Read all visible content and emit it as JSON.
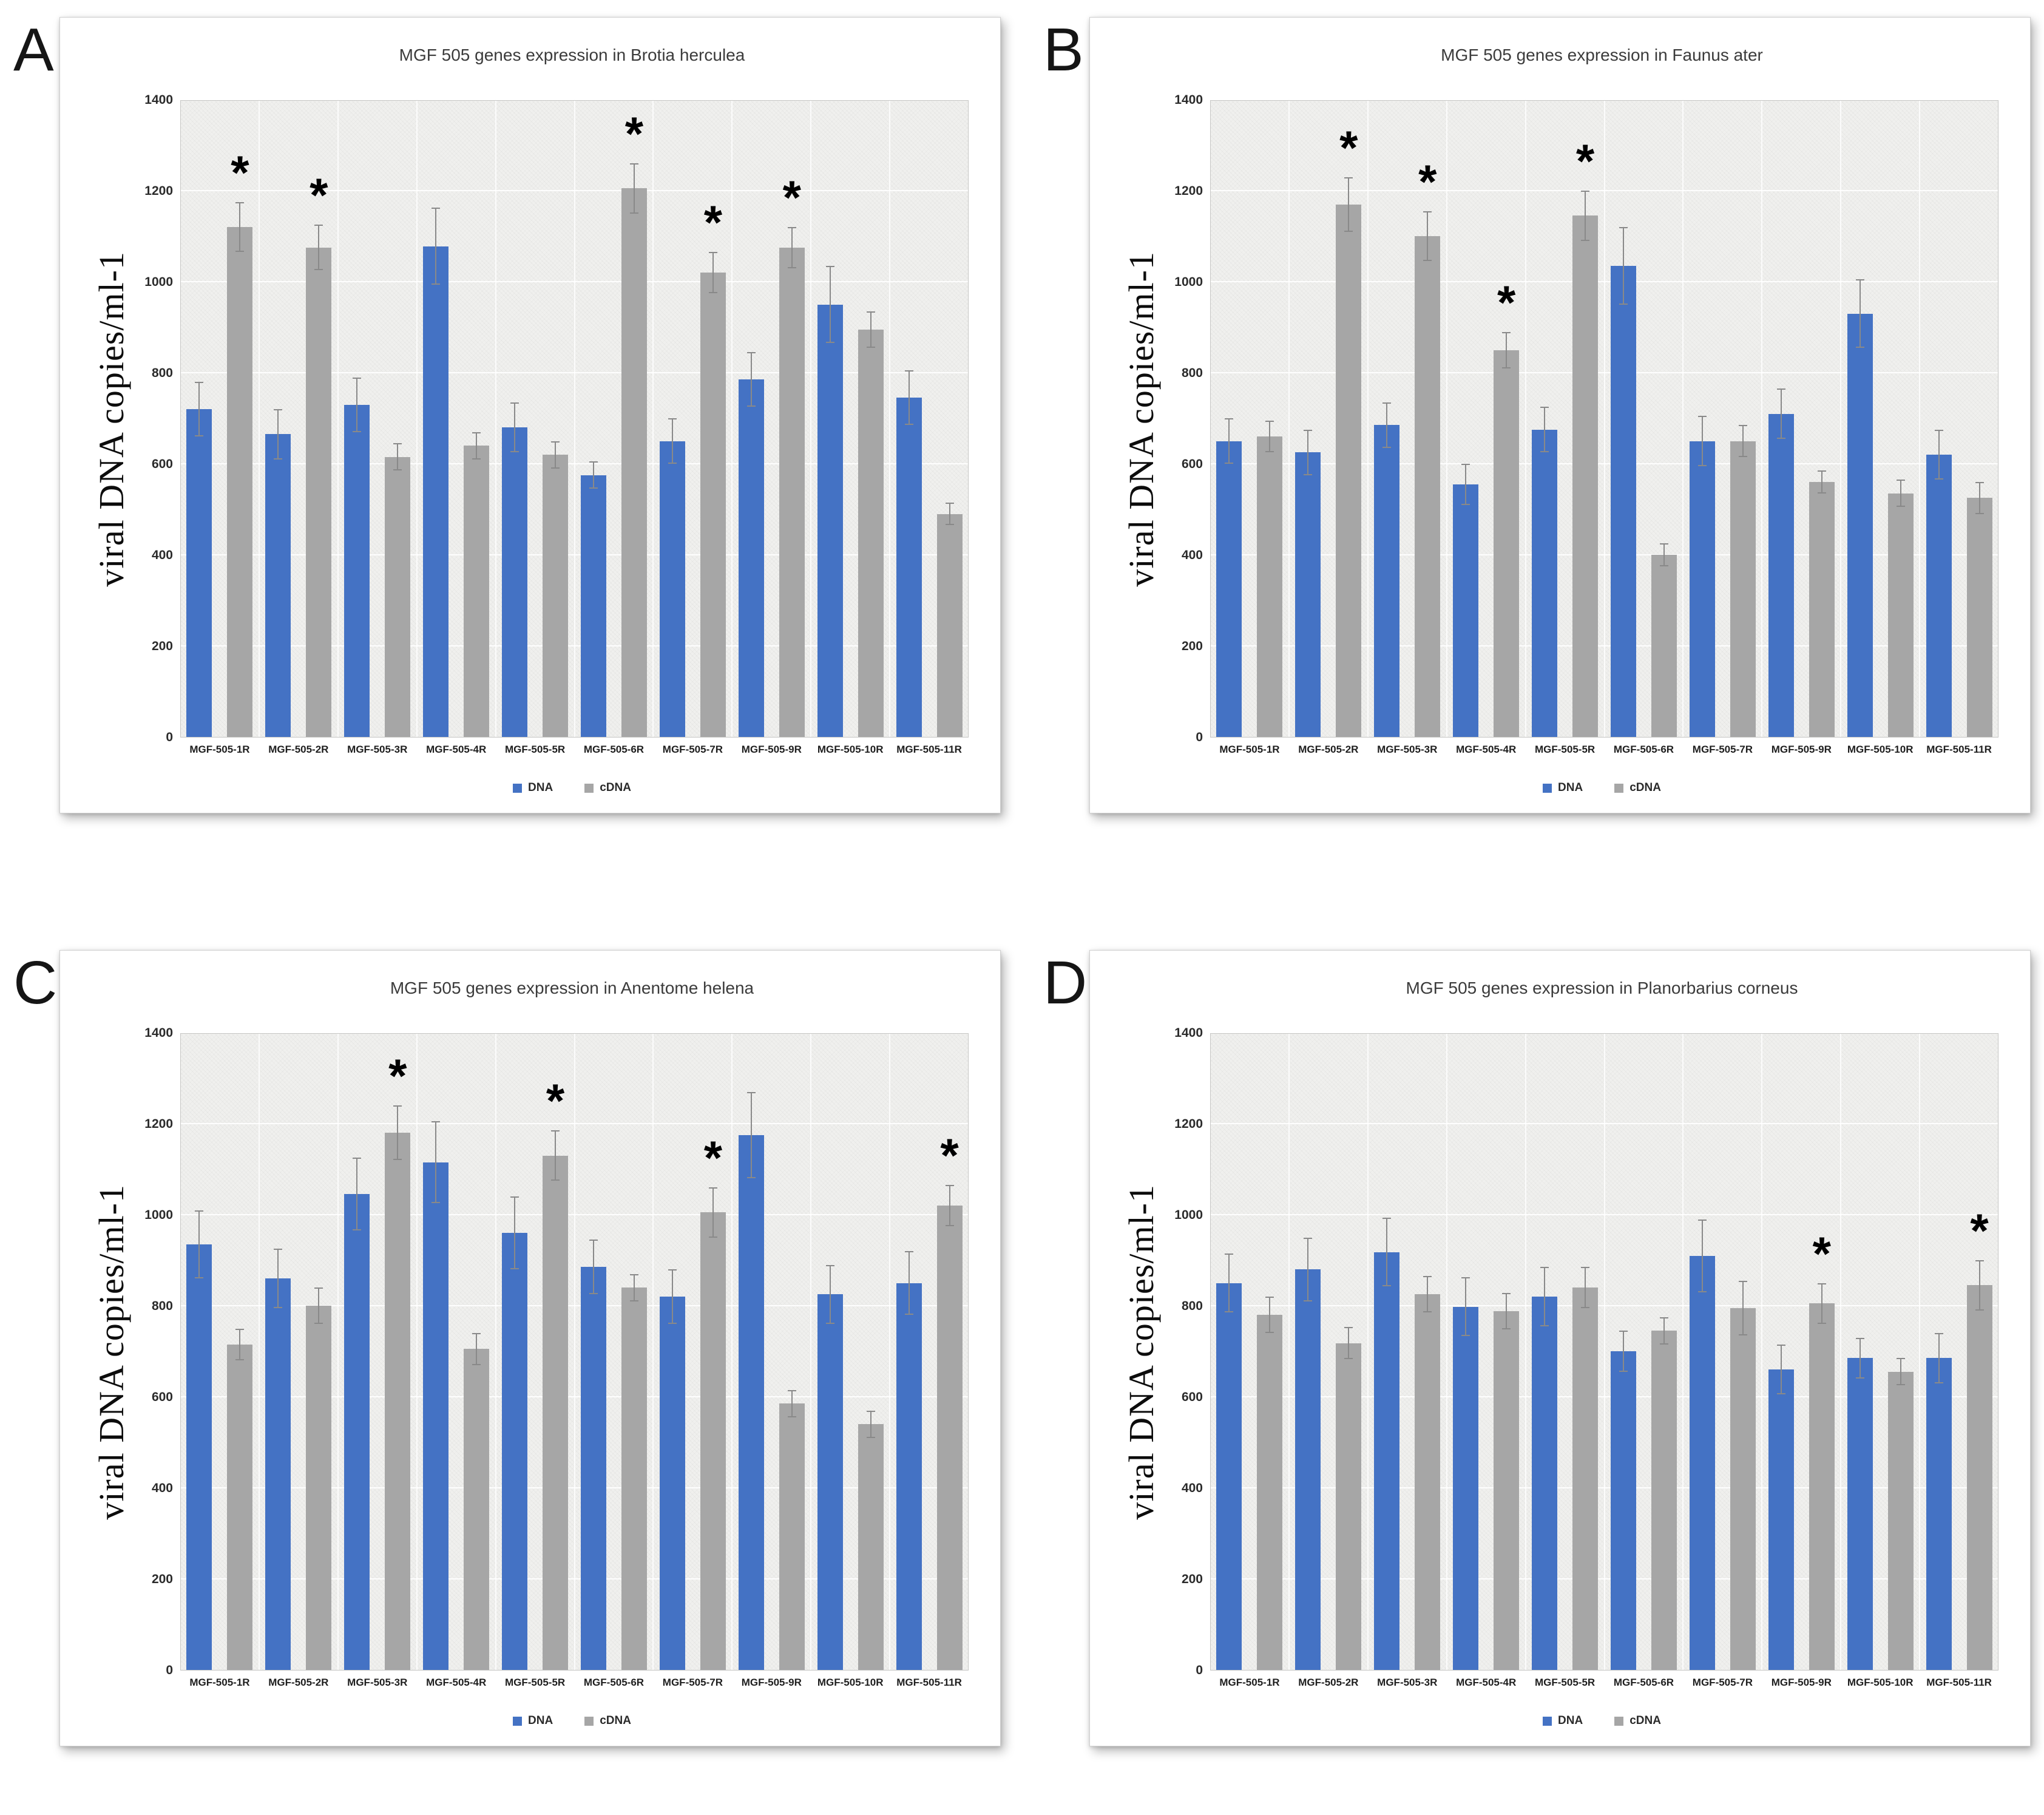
{
  "figure": {
    "y_axis_label": "viral DNA copies/ml-1",
    "sig_marker": "*",
    "legend": [
      {
        "label": "DNA",
        "color": "#4472C4"
      },
      {
        "label": "cDNA",
        "color": "#A6A6A6"
      }
    ],
    "colors": {
      "dna_bar": "#4472C4",
      "cdna_bar": "#A6A6A6",
      "plot_background": "#F0F0EE",
      "error_bar": "#898989"
    }
  },
  "chart_data": [
    {
      "panel": "A",
      "type": "bar",
      "title": "MGF 505 genes expression in Brotia herculea",
      "ylabel": "viral DNA copies/ml-1",
      "ylim": [
        0,
        1400
      ],
      "yticks": [
        0,
        200,
        400,
        600,
        800,
        1000,
        1200,
        1400
      ],
      "grid": true,
      "legend_position": "bottom",
      "categories": [
        "MGF-505-1R",
        "MGF-505-2R",
        "MGF-505-3R",
        "MGF-505-4R",
        "MGF-505-5R",
        "MGF-505-6R",
        "MGF-505-7R",
        "MGF-505-9R",
        "MGF-505-10R",
        "MGF-505-11R"
      ],
      "series": [
        {
          "name": "DNA",
          "color": "#4472C4",
          "values": [
            720,
            665,
            730,
            1078,
            680,
            575,
            650,
            785,
            950,
            745
          ],
          "errors": [
            60,
            55,
            60,
            85,
            55,
            30,
            50,
            60,
            85,
            60
          ]
        },
        {
          "name": "cDNA",
          "color": "#A6A6A6",
          "values": [
            1120,
            1075,
            615,
            640,
            620,
            1205,
            1020,
            1075,
            895,
            490
          ],
          "errors": [
            55,
            50,
            30,
            30,
            30,
            55,
            45,
            45,
            40,
            25
          ],
          "significant": [
            true,
            true,
            false,
            false,
            false,
            true,
            true,
            true,
            false,
            false
          ]
        }
      ]
    },
    {
      "panel": "B",
      "type": "bar",
      "title": "MGF 505 genes expression in Faunus ater",
      "ylabel": "viral DNA copies/ml-1",
      "ylim": [
        0,
        1400
      ],
      "yticks": [
        0,
        200,
        400,
        600,
        800,
        1000,
        1200,
        1400
      ],
      "grid": true,
      "legend_position": "bottom",
      "categories": [
        "MGF-505-1R",
        "MGF-505-2R",
        "MGF-505-3R",
        "MGF-505-4R",
        "MGF-505-5R",
        "MGF-505-6R",
        "MGF-505-7R",
        "MGF-505-9R",
        "MGF-505-10R",
        "MGF-505-11R"
      ],
      "series": [
        {
          "name": "DNA",
          "color": "#4472C4",
          "values": [
            650,
            625,
            685,
            555,
            675,
            1035,
            650,
            710,
            930,
            620
          ],
          "errors": [
            50,
            50,
            50,
            45,
            50,
            85,
            55,
            55,
            75,
            55
          ]
        },
        {
          "name": "cDNA",
          "color": "#A6A6A6",
          "values": [
            660,
            1170,
            1100,
            850,
            1145,
            400,
            650,
            560,
            535,
            525
          ],
          "errors": [
            35,
            60,
            55,
            40,
            55,
            25,
            35,
            25,
            30,
            35
          ],
          "significant": [
            false,
            true,
            true,
            true,
            true,
            false,
            false,
            false,
            false,
            false
          ]
        }
      ]
    },
    {
      "panel": "C",
      "type": "bar",
      "title": "MGF 505 genes expression in Anentome helena",
      "ylabel": "viral DNA copies/ml-1",
      "ylim": [
        0,
        1400
      ],
      "yticks": [
        0,
        200,
        400,
        600,
        800,
        1000,
        1200,
        1400
      ],
      "grid": true,
      "legend_position": "bottom",
      "categories": [
        "MGF-505-1R",
        "MGF-505-2R",
        "MGF-505-3R",
        "MGF-505-4R",
        "MGF-505-5R",
        "MGF-505-6R",
        "MGF-505-7R",
        "MGF-505-9R",
        "MGF-505-10R",
        "MGF-505-11R"
      ],
      "series": [
        {
          "name": "DNA",
          "color": "#4472C4",
          "values": [
            935,
            860,
            1045,
            1115,
            960,
            885,
            820,
            1175,
            825,
            850
          ],
          "errors": [
            75,
            65,
            80,
            90,
            80,
            60,
            60,
            95,
            65,
            70
          ]
        },
        {
          "name": "cDNA",
          "color": "#A6A6A6",
          "values": [
            715,
            800,
            1180,
            705,
            1130,
            840,
            1005,
            585,
            540,
            1020
          ],
          "errors": [
            35,
            40,
            60,
            35,
            55,
            30,
            55,
            30,
            30,
            45
          ],
          "significant": [
            false,
            false,
            true,
            false,
            true,
            false,
            true,
            false,
            false,
            true
          ]
        }
      ]
    },
    {
      "panel": "D",
      "type": "bar",
      "title": "MGF 505 genes expression in Planorbarius corneus",
      "ylabel": "viral DNA copies/ml-1",
      "ylim": [
        0,
        1400
      ],
      "yticks": [
        0,
        200,
        400,
        600,
        800,
        1000,
        1200,
        1400
      ],
      "grid": true,
      "legend_position": "bottom",
      "categories": [
        "MGF-505-1R",
        "MGF-505-2R",
        "MGF-505-3R",
        "MGF-505-4R",
        "MGF-505-5R",
        "MGF-505-6R",
        "MGF-505-7R",
        "MGF-505-9R",
        "MGF-505-10R",
        "MGF-505-11R"
      ],
      "series": [
        {
          "name": "DNA",
          "color": "#4472C4",
          "values": [
            850,
            880,
            918,
            798,
            820,
            700,
            910,
            660,
            685,
            685
          ],
          "errors": [
            65,
            70,
            75,
            65,
            65,
            45,
            80,
            55,
            45,
            55
          ]
        },
        {
          "name": "cDNA",
          "color": "#A6A6A6",
          "values": [
            780,
            718,
            825,
            788,
            840,
            745,
            795,
            805,
            655,
            845
          ],
          "errors": [
            40,
            35,
            40,
            40,
            45,
            30,
            60,
            45,
            30,
            55
          ],
          "significant": [
            false,
            false,
            false,
            false,
            false,
            false,
            false,
            true,
            false,
            true
          ]
        }
      ]
    }
  ]
}
